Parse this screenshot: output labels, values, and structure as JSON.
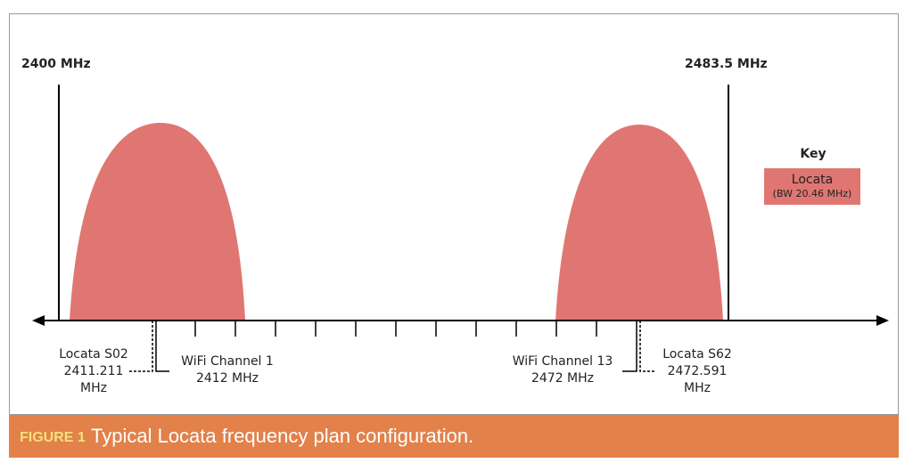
{
  "band_edges": [
    "2400 MHz",
    "2483.5 MHz"
  ],
  "key": {
    "title": "Key",
    "label": "Locata",
    "note": "(BW 20.46 MHz)"
  },
  "annotations": [
    {
      "lines": [
        "Locata S02",
        "2411.211",
        "MHz"
      ]
    },
    {
      "lines": [
        "WiFi Channel 1",
        "2412 MHz"
      ]
    },
    {
      "lines": [
        "WiFi Channel 13",
        "2472 MHz"
      ]
    },
    {
      "lines": [
        "Locata S62",
        "2472.591",
        "MHz"
      ]
    }
  ],
  "caption": {
    "label": "FIGURE 1",
    "text": "Typical Locata frequency plan configuration."
  }
}
